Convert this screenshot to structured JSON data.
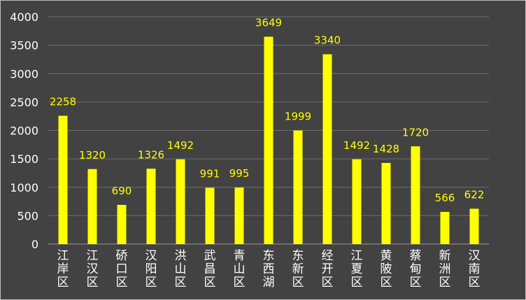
{
  "chart_data": {
    "type": "bar",
    "categories": [
      "江岸区",
      "江汉区",
      "硚口区",
      "汉阳区",
      "洪山区",
      "武昌区",
      "青山区",
      "东西湖",
      "东新区",
      "经开区",
      "江夏区",
      "黄陂区",
      "蔡甸区",
      "新洲区",
      "汉南区"
    ],
    "values": [
      2258,
      1320,
      690,
      1326,
      1492,
      991,
      995,
      3649,
      1999,
      3340,
      1492,
      1428,
      1720,
      566,
      622
    ],
    "ylim": [
      0,
      4000
    ],
    "yticks": [
      0,
      500,
      1000,
      1500,
      2000,
      2500,
      3000,
      3500,
      4000
    ],
    "grid": true,
    "legend": "none",
    "colors": {
      "background": "#424242",
      "bar": "#ffff00",
      "data_label": "#ffff00",
      "text": "#ffffff",
      "grid": "#6e6e6e"
    }
  }
}
